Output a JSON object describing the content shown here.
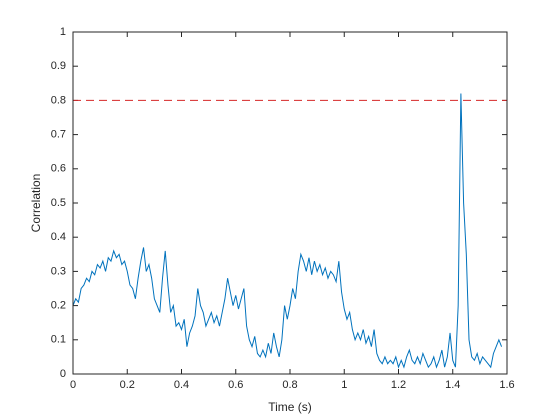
{
  "chart_data": {
    "type": "line",
    "xlabel": "Time (s)",
    "ylabel": "Correlation",
    "xlim": [
      0,
      1.6
    ],
    "ylim": [
      0,
      1
    ],
    "xticks": [
      0,
      0.2,
      0.4,
      0.6,
      0.8,
      1,
      1.2,
      1.4,
      1.6
    ],
    "yticks": [
      0,
      0.1,
      0.2,
      0.3,
      0.4,
      0.5,
      0.6,
      0.7,
      0.8,
      0.9,
      1
    ],
    "threshold": 0.8,
    "threshold_color": "#d62728",
    "series": [
      {
        "color": "#0072bd",
        "x": [
          0,
          0.01,
          0.02,
          0.03,
          0.04,
          0.05,
          0.06,
          0.07,
          0.08,
          0.09,
          0.1,
          0.11,
          0.12,
          0.13,
          0.14,
          0.15,
          0.16,
          0.17,
          0.18,
          0.19,
          0.2,
          0.21,
          0.22,
          0.23,
          0.24,
          0.25,
          0.26,
          0.27,
          0.28,
          0.29,
          0.3,
          0.31,
          0.32,
          0.33,
          0.34,
          0.35,
          0.36,
          0.37,
          0.38,
          0.39,
          0.4,
          0.41,
          0.42,
          0.43,
          0.44,
          0.45,
          0.46,
          0.47,
          0.48,
          0.49,
          0.5,
          0.51,
          0.52,
          0.53,
          0.54,
          0.55,
          0.56,
          0.57,
          0.58,
          0.59,
          0.6,
          0.61,
          0.62,
          0.63,
          0.64,
          0.65,
          0.66,
          0.67,
          0.68,
          0.69,
          0.7,
          0.71,
          0.72,
          0.73,
          0.74,
          0.75,
          0.76,
          0.77,
          0.78,
          0.79,
          0.8,
          0.81,
          0.82,
          0.83,
          0.84,
          0.85,
          0.86,
          0.87,
          0.88,
          0.89,
          0.9,
          0.91,
          0.92,
          0.93,
          0.94,
          0.95,
          0.96,
          0.97,
          0.98,
          0.99,
          1,
          1.01,
          1.02,
          1.03,
          1.04,
          1.05,
          1.06,
          1.07,
          1.08,
          1.09,
          1.1,
          1.11,
          1.12,
          1.13,
          1.14,
          1.15,
          1.16,
          1.17,
          1.18,
          1.19,
          1.2,
          1.21,
          1.22,
          1.23,
          1.24,
          1.25,
          1.26,
          1.27,
          1.28,
          1.29,
          1.3,
          1.31,
          1.32,
          1.33,
          1.34,
          1.35,
          1.36,
          1.37,
          1.38,
          1.39,
          1.4,
          1.41,
          1.42,
          1.43,
          1.44,
          1.45,
          1.46,
          1.47,
          1.48,
          1.49,
          1.5,
          1.51,
          1.52,
          1.53,
          1.54,
          1.55,
          1.56,
          1.57,
          1.58
        ],
        "values": [
          0.2,
          0.22,
          0.21,
          0.25,
          0.26,
          0.28,
          0.27,
          0.3,
          0.29,
          0.32,
          0.31,
          0.33,
          0.3,
          0.34,
          0.33,
          0.36,
          0.34,
          0.35,
          0.32,
          0.33,
          0.3,
          0.26,
          0.25,
          0.22,
          0.28,
          0.33,
          0.37,
          0.3,
          0.32,
          0.28,
          0.22,
          0.2,
          0.18,
          0.28,
          0.36,
          0.26,
          0.18,
          0.2,
          0.14,
          0.15,
          0.13,
          0.16,
          0.08,
          0.12,
          0.14,
          0.17,
          0.25,
          0.2,
          0.18,
          0.14,
          0.16,
          0.18,
          0.15,
          0.17,
          0.14,
          0.18,
          0.22,
          0.28,
          0.24,
          0.2,
          0.23,
          0.19,
          0.22,
          0.25,
          0.14,
          0.1,
          0.08,
          0.11,
          0.06,
          0.05,
          0.07,
          0.05,
          0.09,
          0.06,
          0.12,
          0.08,
          0.05,
          0.1,
          0.2,
          0.16,
          0.2,
          0.25,
          0.22,
          0.3,
          0.35,
          0.33,
          0.3,
          0.34,
          0.29,
          0.33,
          0.3,
          0.32,
          0.29,
          0.31,
          0.28,
          0.3,
          0.29,
          0.27,
          0.33,
          0.24,
          0.19,
          0.16,
          0.18,
          0.13,
          0.1,
          0.12,
          0.1,
          0.13,
          0.09,
          0.11,
          0.08,
          0.13,
          0.06,
          0.04,
          0.03,
          0.05,
          0.03,
          0.04,
          0.03,
          0.05,
          0.02,
          0.04,
          0.02,
          0.05,
          0.07,
          0.04,
          0.03,
          0.05,
          0.03,
          0.06,
          0.04,
          0.02,
          0.03,
          0.05,
          0.02,
          0.04,
          0.07,
          0.02,
          0.05,
          0.12,
          0.04,
          0.02,
          0.2,
          0.82,
          0.5,
          0.35,
          0.1,
          0.05,
          0.04,
          0.06,
          0.03,
          0.05,
          0.04,
          0.03,
          0.02,
          0.06,
          0.08,
          0.1,
          0.08
        ]
      }
    ]
  }
}
